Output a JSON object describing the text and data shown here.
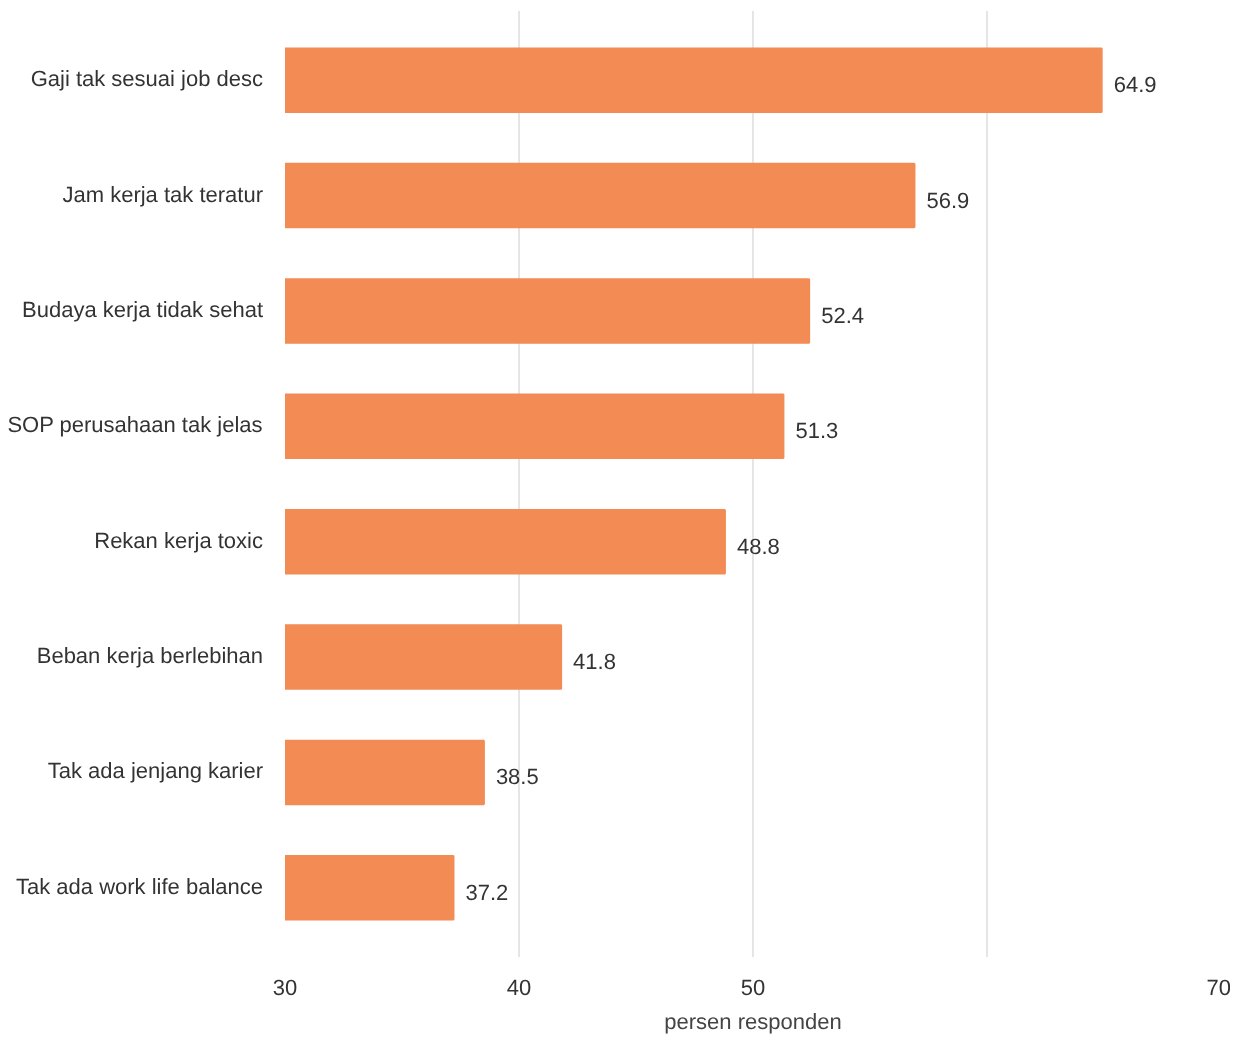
{
  "chart_data": {
    "type": "bar",
    "orientation": "horizontal",
    "xlabel": "persen responden",
    "categories": [
      "Gaji tak sesuai job desc",
      "Jam kerja tak teratur",
      "Budaya kerja tidak sehat",
      "SOP perusahaan tak jelas",
      "Rekan kerja toxic",
      "Beban kerja berlebihan",
      "Tak ada jenjang karier",
      "Tak ada work life balance"
    ],
    "values": [
      64.9,
      56.9,
      52.4,
      51.3,
      48.8,
      41.8,
      38.5,
      37.2
    ],
    "color": "#f28b54",
    "xlim": [
      30,
      70
    ],
    "xticks": [
      30,
      40,
      50,
      {
        "value": 60,
        "label": null
      },
      70
    ],
    "grid": "x",
    "data_labels": true
  }
}
